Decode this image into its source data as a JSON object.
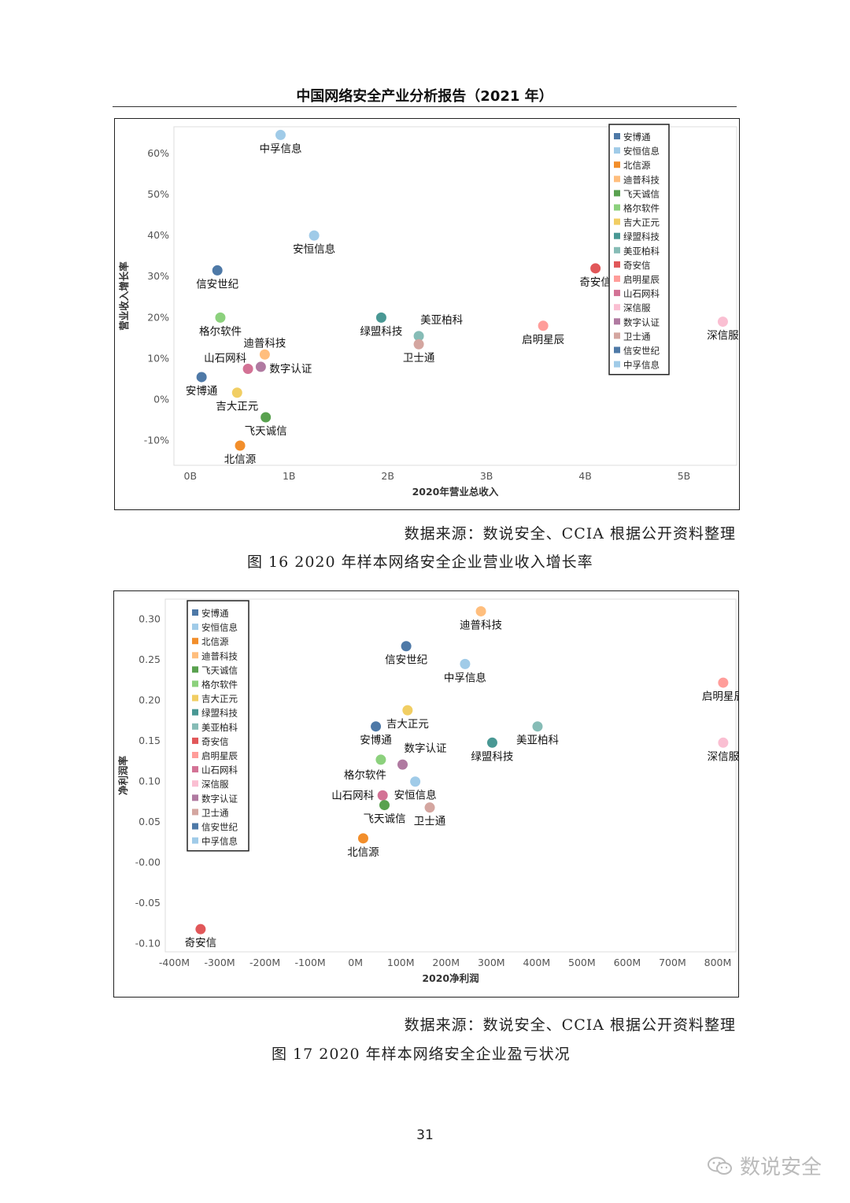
{
  "header": {
    "title": "中国网络安全产业分析报告（2021 年）"
  },
  "figure1": {
    "source": "数据来源：数说安全、CCIA 根据公开资料整理",
    "caption": "图 16 2020 年样本网络安全企业营业收入增长率"
  },
  "figure2": {
    "source": "数据来源：数说安全、CCIA 根据公开资料整理",
    "caption": "图 17 2020 年样本网络安全企业盈亏状况"
  },
  "page_number": "31",
  "watermark": {
    "text": "数说安全",
    "icon": "wechat-icon"
  },
  "legend_colors": {
    "安博通": "#4e79a7",
    "安恒信息": "#a0cbe8",
    "北信源": "#f28e2b",
    "迪普科技": "#ffbe7d",
    "飞天诚信": "#59a14f",
    "格尔软件": "#8cd17d",
    "吉大正元": "#f1ce63",
    "绿盟科技": "#499894",
    "美亚柏科": "#86bcb6",
    "奇安信": "#e15759",
    "启明星辰": "#ff9d9a",
    "山石网科": "#d37295",
    "深信服": "#fabfd2",
    "数字认证": "#b07aa1",
    "卫士通": "#d4a6a0",
    "信安世纪": "#4e79a7",
    "中孚信息": "#a0cbe8"
  },
  "chart_data": [
    {
      "type": "scatter",
      "title": "",
      "xlabel": "2020年营业总收入",
      "ylabel": "营业收入增长率",
      "x_ticks": [
        "0B",
        "1B",
        "2B",
        "3B",
        "4B",
        "5B"
      ],
      "y_ticks": [
        "-10%",
        "0%",
        "10%",
        "20%",
        "30%",
        "40%",
        "50%",
        "60%"
      ],
      "xlim": [
        -0.1,
        5.6
      ],
      "ylim": [
        -0.16,
        0.665
      ],
      "grid": false,
      "legend": "top-right",
      "legend_entries": [
        "安博通",
        "安恒信息",
        "北信源",
        "迪普科技",
        "飞天诚信",
        "格尔软件",
        "吉大正元",
        "绿盟科技",
        "美亚柏科",
        "奇安信",
        "启明星辰",
        "山石网科",
        "深信服",
        "数字认证",
        "卫士通",
        "信安世纪",
        "中孚信息"
      ],
      "points": [
        {
          "name": "中孚信息",
          "x": 0.98,
          "y": 0.645,
          "label_pos": "below"
        },
        {
          "name": "安恒信息",
          "x": 1.32,
          "y": 0.4,
          "label_pos": "below"
        },
        {
          "name": "信安世纪",
          "x": 0.34,
          "y": 0.315,
          "label_pos": "below"
        },
        {
          "name": "格尔软件",
          "x": 0.37,
          "y": 0.2,
          "label_pos": "below"
        },
        {
          "name": "迪普科技",
          "x": 0.82,
          "y": 0.11,
          "label_pos": "above"
        },
        {
          "name": "山石网科",
          "x": 0.65,
          "y": 0.075,
          "label_pos": "above-left"
        },
        {
          "name": "数字认证",
          "x": 0.78,
          "y": 0.08,
          "label_pos": "right"
        },
        {
          "name": "安博通",
          "x": 0.18,
          "y": 0.055,
          "label_pos": "below"
        },
        {
          "name": "吉大正元",
          "x": 0.54,
          "y": 0.017,
          "label_pos": "below"
        },
        {
          "name": "飞天诚信",
          "x": 0.83,
          "y": -0.043,
          "label_pos": "below"
        },
        {
          "name": "北信源",
          "x": 0.57,
          "y": -0.112,
          "label_pos": "below"
        },
        {
          "name": "绿盟科技",
          "x": 2.0,
          "y": 0.2,
          "label_pos": "below"
        },
        {
          "name": "美亚柏科",
          "x": 2.38,
          "y": 0.155,
          "label_pos": "above-right"
        },
        {
          "name": "卫士通",
          "x": 2.38,
          "y": 0.135,
          "label_pos": "below"
        },
        {
          "name": "奇安信",
          "x": 4.17,
          "y": 0.32,
          "label_pos": "below"
        },
        {
          "name": "启明星辰",
          "x": 3.64,
          "y": 0.18,
          "label_pos": "below"
        },
        {
          "name": "深信服",
          "x": 5.46,
          "y": 0.19,
          "label_pos": "below"
        }
      ]
    },
    {
      "type": "scatter",
      "title": "",
      "xlabel": "2020净利润",
      "ylabel": "净利润率",
      "x_ticks": [
        "-400M",
        "-300M",
        "-200M",
        "-100M",
        "0M",
        "100M",
        "200M",
        "300M",
        "400M",
        "500M",
        "600M",
        "700M",
        "800M"
      ],
      "y_ticks": [
        "-0.10",
        "-0.05",
        "-0.00",
        "0.05",
        "0.10",
        "0.15",
        "0.20",
        "0.25",
        "0.30"
      ],
      "xlim": [
        -420,
        840
      ],
      "ylim": [
        -0.11,
        0.325
      ],
      "grid": false,
      "legend": "top-left",
      "legend_entries": [
        "安博通",
        "安恒信息",
        "北信源",
        "迪普科技",
        "飞天诚信",
        "格尔软件",
        "吉大正元",
        "绿盟科技",
        "美亚柏科",
        "奇安信",
        "启明星辰",
        "山石网科",
        "深信服",
        "数字认证",
        "卫士通",
        "信安世纪",
        "中孚信息"
      ],
      "points": [
        {
          "name": "迪普科技",
          "x": 277,
          "y": 0.31,
          "label_pos": "below"
        },
        {
          "name": "信安世纪",
          "x": 112,
          "y": 0.267,
          "label_pos": "below"
        },
        {
          "name": "中孚信息",
          "x": 242,
          "y": 0.245,
          "label_pos": "below"
        },
        {
          "name": "启明星辰",
          "x": 812,
          "y": 0.222,
          "label_pos": "below"
        },
        {
          "name": "吉大正元",
          "x": 115,
          "y": 0.188,
          "label_pos": "below"
        },
        {
          "name": "安博通",
          "x": 45,
          "y": 0.168,
          "label_pos": "below"
        },
        {
          "name": "美亚柏科",
          "x": 402,
          "y": 0.168,
          "label_pos": "below"
        },
        {
          "name": "绿盟科技",
          "x": 302,
          "y": 0.148,
          "label_pos": "below"
        },
        {
          "name": "深信服",
          "x": 812,
          "y": 0.148,
          "label_pos": "below"
        },
        {
          "name": "格尔软件",
          "x": 56,
          "y": 0.127,
          "label_pos": "below-left"
        },
        {
          "name": "数字认证",
          "x": 104,
          "y": 0.121,
          "label_pos": "above-right"
        },
        {
          "name": "安恒信息",
          "x": 132,
          "y": 0.1,
          "label_pos": "below"
        },
        {
          "name": "山石网科",
          "x": 60,
          "y": 0.083,
          "label_pos": "left"
        },
        {
          "name": "飞天诚信",
          "x": 64,
          "y": 0.071,
          "label_pos": "below"
        },
        {
          "name": "卫士通",
          "x": 164,
          "y": 0.068,
          "label_pos": "below"
        },
        {
          "name": "北信源",
          "x": 17,
          "y": 0.03,
          "label_pos": "below"
        },
        {
          "name": "奇安信",
          "x": -342,
          "y": -0.082,
          "label_pos": "below"
        }
      ]
    }
  ]
}
